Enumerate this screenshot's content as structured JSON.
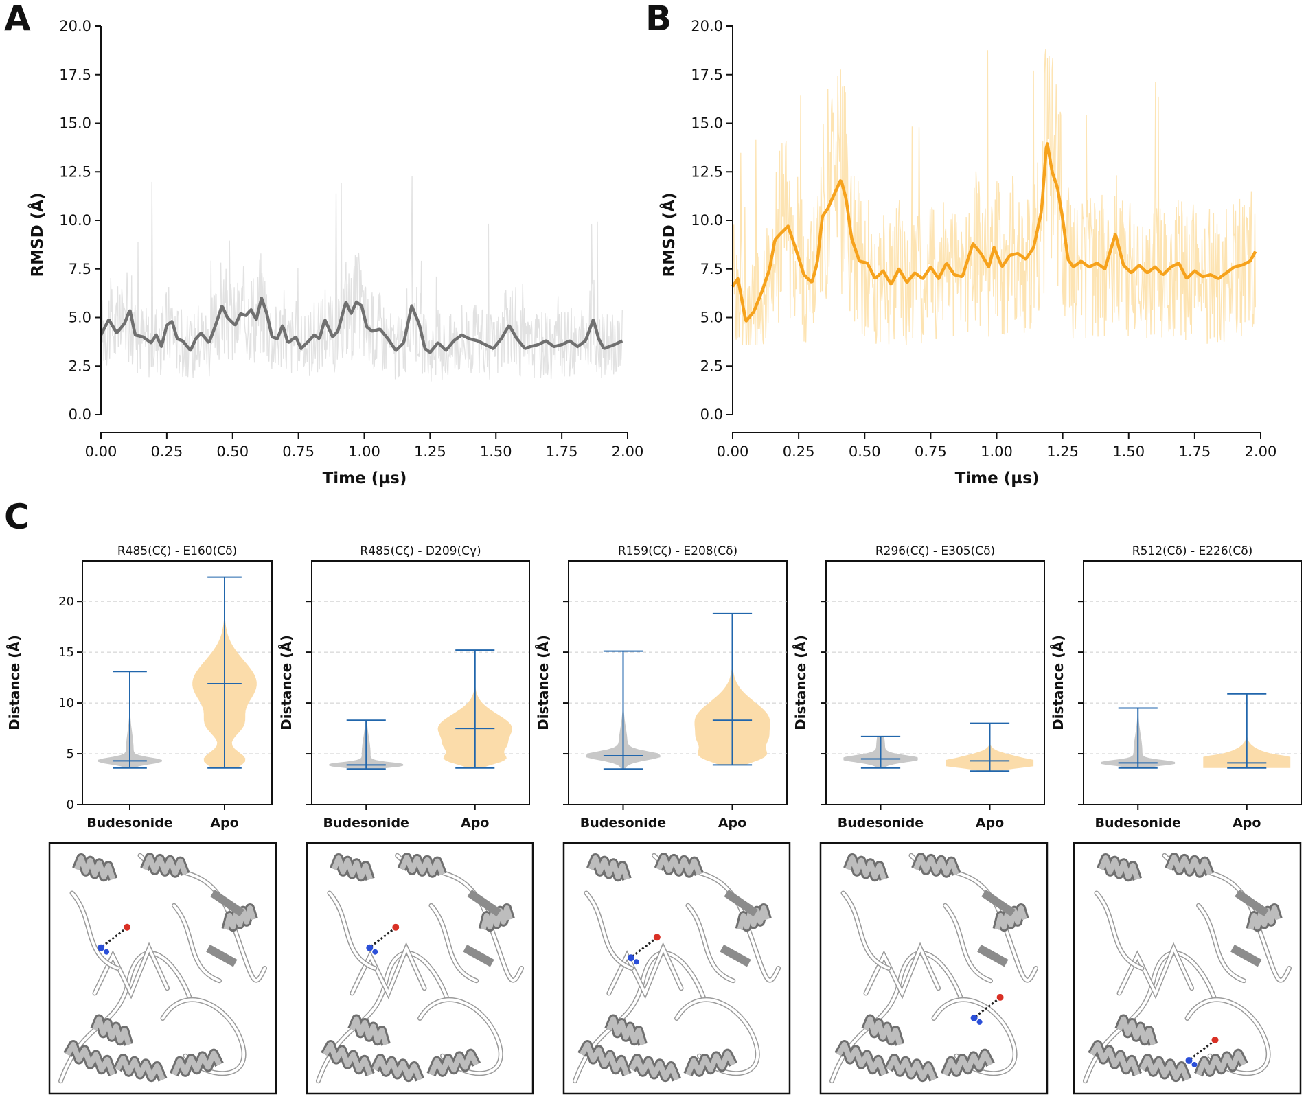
{
  "panel_labels": [
    "A",
    "B",
    "C"
  ],
  "chart_data": [
    {
      "id": "A",
      "type": "line",
      "title": "",
      "xlabel": "Time (µs)",
      "ylabel": "RMSD (Å)",
      "xlim": [
        0,
        2
      ],
      "ylim": [
        0,
        20
      ],
      "xticks": [
        "0.00",
        "0.25",
        "0.50",
        "0.75",
        "1.00",
        "1.25",
        "1.50",
        "1.75",
        "2.00"
      ],
      "yticks": [
        "0.0",
        "2.5",
        "5.0",
        "7.5",
        "10.0",
        "12.5",
        "15.0",
        "17.5",
        "20.0"
      ],
      "colors": {
        "line": "#707070",
        "band": "#e2e2e2"
      },
      "smooth_series": {
        "x": [
          0.0,
          0.03,
          0.06,
          0.09,
          0.11,
          0.13,
          0.16,
          0.19,
          0.21,
          0.23,
          0.25,
          0.27,
          0.29,
          0.31,
          0.34,
          0.36,
          0.38,
          0.41,
          0.43,
          0.46,
          0.48,
          0.51,
          0.53,
          0.55,
          0.57,
          0.59,
          0.61,
          0.63,
          0.65,
          0.67,
          0.69,
          0.71,
          0.74,
          0.76,
          0.79,
          0.81,
          0.83,
          0.85,
          0.88,
          0.9,
          0.93,
          0.95,
          0.97,
          0.99,
          1.01,
          1.03,
          1.06,
          1.09,
          1.12,
          1.15,
          1.18,
          1.21,
          1.23,
          1.25,
          1.28,
          1.31,
          1.34,
          1.37,
          1.4,
          1.43,
          1.46,
          1.49,
          1.52,
          1.55,
          1.58,
          1.61,
          1.63,
          1.66,
          1.69,
          1.72,
          1.75,
          1.78,
          1.81,
          1.84,
          1.87,
          1.89,
          1.91,
          1.93,
          1.95,
          1.98
        ],
        "y": [
          4.1,
          4.9,
          4.2,
          4.7,
          5.4,
          4.1,
          4.0,
          3.7,
          4.1,
          3.5,
          4.6,
          4.8,
          3.9,
          3.8,
          3.3,
          3.9,
          4.2,
          3.7,
          4.4,
          5.6,
          5.0,
          4.6,
          5.2,
          5.1,
          5.4,
          4.9,
          6.0,
          5.2,
          4.0,
          3.9,
          4.6,
          3.7,
          4.0,
          3.4,
          3.8,
          4.1,
          3.9,
          4.9,
          4.0,
          4.3,
          5.8,
          5.2,
          5.8,
          5.6,
          4.5,
          4.3,
          4.4,
          3.9,
          3.3,
          3.7,
          5.6,
          4.6,
          3.4,
          3.2,
          3.7,
          3.3,
          3.8,
          4.1,
          3.9,
          3.8,
          3.6,
          3.4,
          3.9,
          4.6,
          3.9,
          3.4,
          3.5,
          3.6,
          3.8,
          3.5,
          3.6,
          3.8,
          3.5,
          3.8,
          4.9,
          3.9,
          3.4,
          3.5,
          3.6,
          3.8
        ]
      },
      "band_range": {
        "typical_min": 2.0,
        "typical_max": 7.5,
        "peak_max": 12.8
      }
    },
    {
      "id": "B",
      "type": "line",
      "title": "",
      "xlabel": "Time (µs)",
      "ylabel": "RMSD (Å)",
      "xlim": [
        0,
        2
      ],
      "ylim": [
        0,
        20
      ],
      "xticks": [
        "0.00",
        "0.25",
        "0.50",
        "0.75",
        "1.00",
        "1.25",
        "1.50",
        "1.75",
        "2.00"
      ],
      "yticks": [
        "0.0",
        "2.5",
        "5.0",
        "7.5",
        "10.0",
        "12.5",
        "15.0",
        "17.5",
        "20.0"
      ],
      "colors": {
        "line": "#f6a21c",
        "band": "#fde4b3"
      },
      "smooth_series": {
        "x": [
          0.0,
          0.02,
          0.05,
          0.08,
          0.11,
          0.14,
          0.16,
          0.18,
          0.21,
          0.24,
          0.27,
          0.3,
          0.32,
          0.34,
          0.36,
          0.38,
          0.41,
          0.43,
          0.45,
          0.48,
          0.51,
          0.54,
          0.57,
          0.6,
          0.63,
          0.66,
          0.69,
          0.72,
          0.75,
          0.78,
          0.81,
          0.84,
          0.87,
          0.91,
          0.94,
          0.97,
          0.99,
          1.02,
          1.05,
          1.08,
          1.11,
          1.14,
          1.17,
          1.19,
          1.21,
          1.23,
          1.25,
          1.27,
          1.29,
          1.32,
          1.35,
          1.38,
          1.41,
          1.45,
          1.48,
          1.51,
          1.54,
          1.57,
          1.6,
          1.63,
          1.66,
          1.69,
          1.72,
          1.75,
          1.78,
          1.81,
          1.84,
          1.87,
          1.9,
          1.93,
          1.96,
          1.98
        ],
        "y": [
          6.6,
          7.0,
          4.8,
          5.3,
          6.3,
          7.5,
          9.0,
          9.3,
          9.7,
          8.5,
          7.2,
          6.8,
          7.8,
          10.2,
          10.6,
          11.2,
          12.1,
          11.1,
          9.1,
          7.9,
          7.8,
          7.0,
          7.4,
          6.7,
          7.5,
          6.8,
          7.3,
          7.0,
          7.6,
          7.0,
          7.8,
          7.2,
          7.1,
          8.8,
          8.3,
          7.6,
          8.6,
          7.6,
          8.2,
          8.3,
          8.0,
          8.6,
          10.5,
          14.1,
          12.5,
          11.7,
          10.1,
          8.0,
          7.6,
          7.9,
          7.6,
          7.8,
          7.5,
          9.3,
          7.7,
          7.3,
          7.7,
          7.3,
          7.6,
          7.2,
          7.6,
          7.8,
          7.0,
          7.4,
          7.1,
          7.2,
          7.0,
          7.3,
          7.6,
          7.7,
          7.9,
          8.4
        ]
      },
      "band_range": {
        "typical_min": 4.5,
        "typical_max": 12.0,
        "peak_max": 18.8
      }
    },
    {
      "id": "C",
      "type": "violin",
      "ylabel": "Distance (Å)",
      "ylim": [
        0,
        24
      ],
      "yticks": [
        "0",
        "5",
        "10",
        "15",
        "20"
      ],
      "categories": [
        "Budesonide",
        "Apo"
      ],
      "colors": {
        "Budesonide": "#c8c8c8",
        "Apo": "#fbdcaa",
        "whisker": "#2166ac"
      },
      "subplots": [
        {
          "title": "R485(Cζ) - E160(Cδ)",
          "stats": [
            {
              "name": "Budesonide",
              "min": 3.6,
              "max": 13.1,
              "median": 4.3
            },
            {
              "name": "Apo",
              "min": 3.6,
              "max": 22.4,
              "median": 11.9
            }
          ]
        },
        {
          "title": "R485(Cζ) - D209(Cγ)",
          "stats": [
            {
              "name": "Budesonide",
              "min": 3.5,
              "max": 8.3,
              "median": 3.9
            },
            {
              "name": "Apo",
              "min": 3.6,
              "max": 15.2,
              "median": 7.5
            }
          ]
        },
        {
          "title": "R159(Cζ) - E208(Cδ)",
          "stats": [
            {
              "name": "Budesonide",
              "min": 3.5,
              "max": 15.1,
              "median": 4.8
            },
            {
              "name": "Apo",
              "min": 3.9,
              "max": 18.8,
              "median": 8.3
            }
          ]
        },
        {
          "title": "R296(Cζ) - E305(Cδ)",
          "stats": [
            {
              "name": "Budesonide",
              "min": 3.6,
              "max": 6.7,
              "median": 4.5
            },
            {
              "name": "Apo",
              "min": 3.3,
              "max": 8.0,
              "median": 4.3
            }
          ]
        },
        {
          "title": "R512(Cδ) - E226(Cδ)",
          "stats": [
            {
              "name": "Budesonide",
              "min": 3.6,
              "max": 9.5,
              "median": 4.1
            },
            {
              "name": "Apo",
              "min": 3.6,
              "max": 10.9,
              "median": 4.1
            }
          ]
        }
      ]
    }
  ]
}
